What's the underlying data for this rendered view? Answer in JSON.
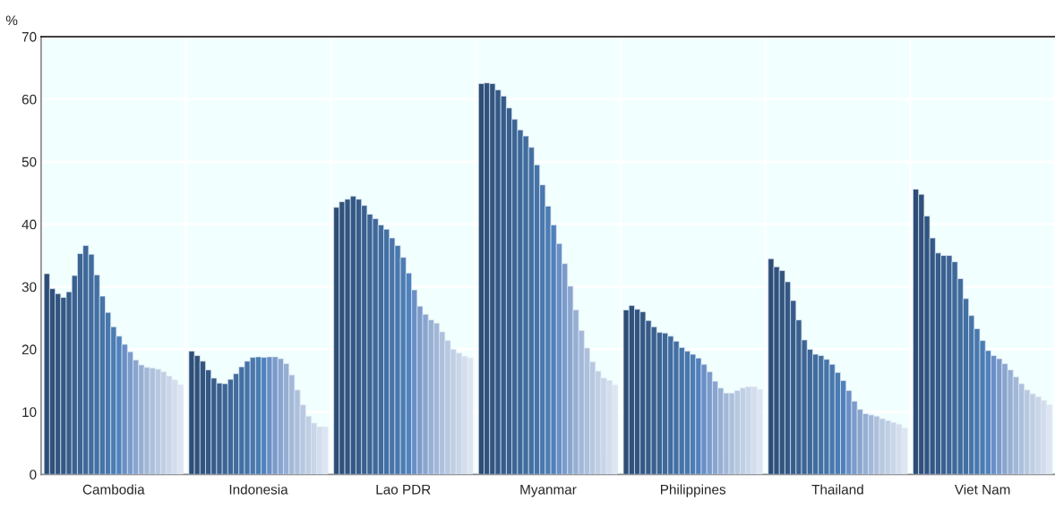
{
  "chart_data": {
    "type": "bar",
    "ylabel": "%",
    "categories": [
      "Cambodia",
      "Indonesia",
      "Lao PDR",
      "Myanmar",
      "Philippines",
      "Thailand",
      "Viet Nam"
    ],
    "series": [
      {
        "color": "#2e4d76",
        "values": [
          32.1,
          19.7,
          42.7,
          62.5,
          26.3,
          34.5,
          45.6
        ]
      },
      {
        "color": "#30517b",
        "values": [
          29.7,
          19.0,
          43.6,
          62.6,
          27.0,
          33.2,
          44.8
        ]
      },
      {
        "color": "#325580",
        "values": [
          28.9,
          18.1,
          44.0,
          62.5,
          26.4,
          32.6,
          41.3
        ]
      },
      {
        "color": "#345885",
        "values": [
          28.3,
          16.7,
          44.5,
          61.5,
          26.0,
          30.8,
          37.8
        ]
      },
      {
        "color": "#375c8a",
        "values": [
          29.2,
          15.4,
          44.0,
          60.5,
          24.6,
          27.8,
          35.4
        ]
      },
      {
        "color": "#39608f",
        "values": [
          31.8,
          14.6,
          43.0,
          58.6,
          23.6,
          24.7,
          35.0
        ]
      },
      {
        "color": "#3c6494",
        "values": [
          35.3,
          14.5,
          41.6,
          56.8,
          22.7,
          21.5,
          35.0
        ]
      },
      {
        "color": "#3e6899",
        "values": [
          36.6,
          15.2,
          40.9,
          55.1,
          22.6,
          20.0,
          34.0
        ]
      },
      {
        "color": "#416c9e",
        "values": [
          35.2,
          16.1,
          39.9,
          54.1,
          22.1,
          19.2,
          31.3
        ]
      },
      {
        "color": "#4370a3",
        "values": [
          31.9,
          17.2,
          39.2,
          52.3,
          21.3,
          19.0,
          28.1
        ]
      },
      {
        "color": "#4674a8",
        "values": [
          28.5,
          18.1,
          37.8,
          49.5,
          20.3,
          18.4,
          25.4
        ]
      },
      {
        "color": "#4878ad",
        "values": [
          25.9,
          18.7,
          36.6,
          46.3,
          19.7,
          17.6,
          23.3
        ]
      },
      {
        "color": "#4b7cb2",
        "values": [
          23.6,
          18.8,
          34.7,
          42.9,
          19.2,
          16.3,
          21.4
        ]
      },
      {
        "color": "#4f81bd",
        "values": [
          22.1,
          18.7,
          32.2,
          39.9,
          18.6,
          15.0,
          19.8
        ]
      },
      {
        "color": "#6a8fc6",
        "values": [
          20.8,
          18.8,
          29.5,
          36.9,
          17.6,
          13.4,
          19.0
        ]
      },
      {
        "color": "#7b9bcb",
        "values": [
          19.6,
          18.8,
          26.9,
          33.7,
          16.4,
          11.7,
          18.5
        ]
      },
      {
        "color": "#89a5cf",
        "values": [
          18.3,
          18.5,
          25.6,
          30.1,
          14.9,
          10.4,
          17.7
        ]
      },
      {
        "color": "#96afd3",
        "values": [
          17.5,
          17.7,
          24.7,
          26.3,
          13.8,
          9.7,
          16.7
        ]
      },
      {
        "color": "#a3b8d8",
        "values": [
          17.1,
          15.9,
          24.2,
          23.0,
          13.0,
          9.5,
          15.6
        ]
      },
      {
        "color": "#adc0dc",
        "values": [
          17.0,
          13.5,
          22.8,
          20.2,
          13.0,
          9.3,
          14.5
        ]
      },
      {
        "color": "#b7c8e0",
        "values": [
          16.8,
          11.1,
          21.4,
          18.0,
          13.4,
          8.9,
          13.5
        ]
      },
      {
        "color": "#c0cfe4",
        "values": [
          16.4,
          9.3,
          20.0,
          16.5,
          13.8,
          8.6,
          12.9
        ]
      },
      {
        "color": "#c9d5e8",
        "values": [
          15.7,
          8.2,
          19.4,
          15.4,
          14.0,
          8.3,
          12.4
        ]
      },
      {
        "color": "#d3ddec",
        "values": [
          15.1,
          7.6,
          18.9,
          15.0,
          14.0,
          8.0,
          11.8
        ]
      },
      {
        "color": "#dde5f2",
        "values": [
          14.3,
          7.6,
          18.6,
          14.3,
          13.6,
          7.4,
          11.1
        ]
      }
    ],
    "ylim": [
      0,
      70
    ],
    "yticks": [
      0,
      10,
      20,
      30,
      40,
      50,
      60,
      70
    ],
    "grid": true
  }
}
